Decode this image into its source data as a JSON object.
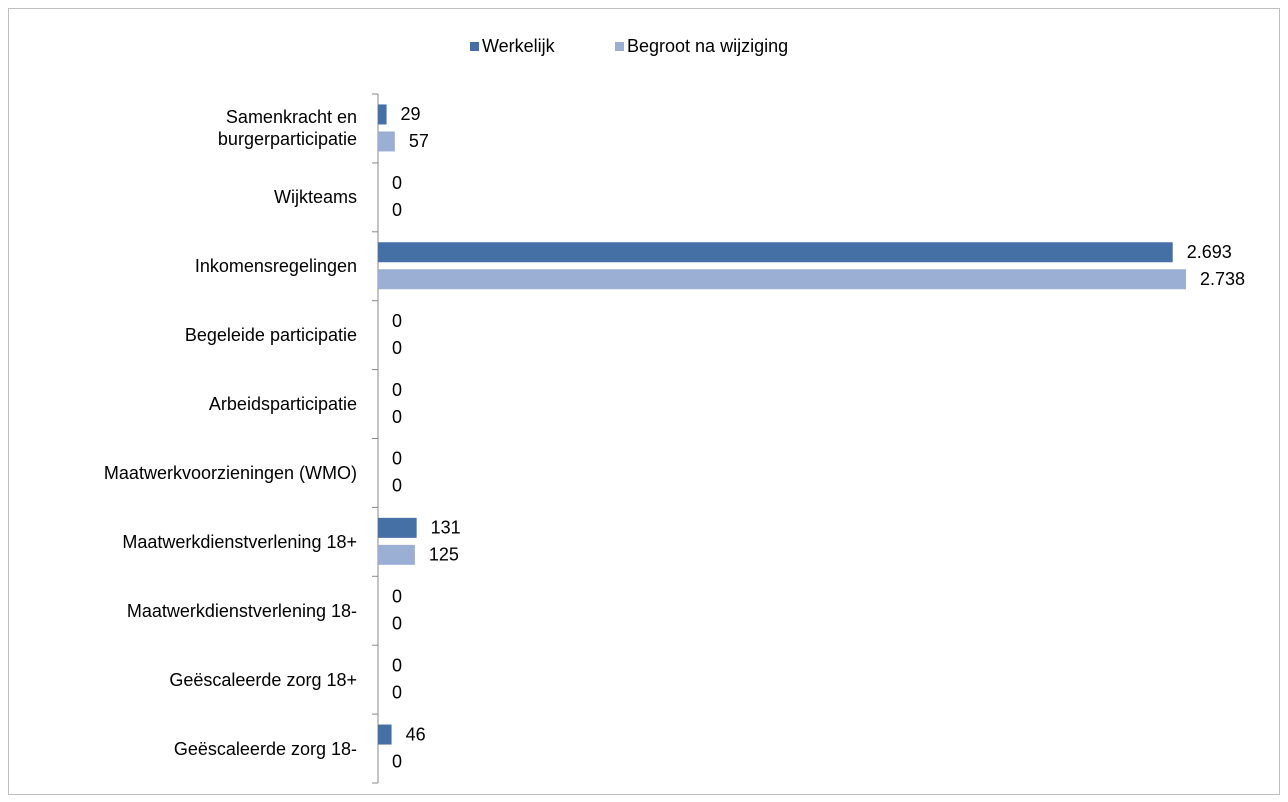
{
  "chart_data": {
    "type": "bar",
    "orientation": "horizontal",
    "categories": [
      "Samenkracht en\nburgerparticipatie",
      "Wijkteams",
      "Inkomensregelingen",
      "Begeleide participatie",
      "Arbeidsparticipatie",
      "Maatwerkvoorzieningen (WMO)",
      "Maatwerkdienstverlening 18+",
      "Maatwerkdienstverlening 18-",
      "Geëscaleerde zorg 18+",
      "Geëscaleerde zorg 18-"
    ],
    "series": [
      {
        "name": "Werkelijk",
        "color": "#4570a6",
        "values": [
          29,
          0,
          2693,
          0,
          0,
          0,
          131,
          0,
          0,
          46
        ],
        "value_labels": [
          "29",
          "0",
          "2.693",
          "0",
          "0",
          "0",
          "131",
          "0",
          "0",
          "46"
        ]
      },
      {
        "name": "Begroot na wijziging",
        "color": "#9bafd5",
        "values": [
          57,
          0,
          2738,
          0,
          0,
          0,
          125,
          0,
          0,
          0
        ],
        "value_labels": [
          "57",
          "0",
          "2.738",
          "0",
          "0",
          "0",
          "125",
          "0",
          "0",
          "0"
        ]
      }
    ],
    "legend": "top"
  }
}
